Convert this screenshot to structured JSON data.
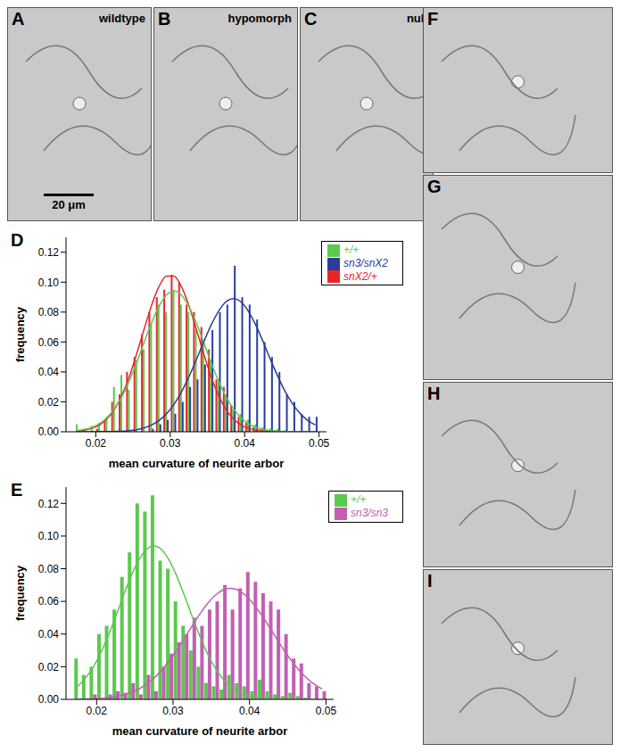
{
  "image_panels": [
    {
      "panel_label": "A",
      "text": "wildtype",
      "scale_bar": "20 μm"
    },
    {
      "panel_label": "B",
      "text": "hypomorph"
    },
    {
      "panel_label": "C",
      "text": "null"
    },
    {
      "panel_label": "F"
    },
    {
      "panel_label": "G"
    },
    {
      "panel_label": "H"
    },
    {
      "panel_label": "I"
    }
  ],
  "chart_data": [
    {
      "panel_label": "D",
      "type": "histogram",
      "x_label": "mean curvature of neurite arbor",
      "y_label": "frequency",
      "bins": [
        0.017,
        0.018,
        0.019,
        0.02,
        0.021,
        0.022,
        0.023,
        0.024,
        0.025,
        0.026,
        0.027,
        0.028,
        0.029,
        0.03,
        0.031,
        0.032,
        0.033,
        0.034,
        0.035,
        0.036,
        0.037,
        0.038,
        0.039,
        0.04,
        0.041,
        0.042,
        0.043,
        0.044,
        0.045,
        0.046,
        0.047,
        0.048,
        0.049,
        0.05
      ],
      "xlim": [
        0.016,
        0.051
      ],
      "xticks": [
        0.02,
        0.03,
        0.04,
        0.05
      ],
      "ylim": [
        0,
        0.13
      ],
      "yticks": [
        {
          "value": 0,
          "label": "0.00"
        },
        {
          "value": 0.02,
          "label": "0.02"
        },
        {
          "value": 0.04,
          "label": "0.04"
        },
        {
          "value": 0.06,
          "label": "0.06"
        },
        {
          "value": 0.08,
          "label": "0.08"
        },
        {
          "value": 0.1,
          "label": "0.10"
        },
        {
          "value": 0.12,
          "label": "0.12"
        }
      ],
      "legend": "upper right",
      "series": [
        {
          "name": "snX2/+",
          "color": "#e8262a",
          "values": [
            0,
            0,
            0,
            0.002,
            0.008,
            0.02,
            0.025,
            0.04,
            0.05,
            0.065,
            0.08,
            0.09,
            0.095,
            0.105,
            0.1,
            0.085,
            0.08,
            0.07,
            0.055,
            0.035,
            0.03,
            0.018,
            0.01,
            0.006,
            0.003,
            0.002,
            0.001,
            0,
            0,
            0,
            0,
            0,
            0
          ],
          "fit": [
            0.0005,
            0.0011,
            0.0023,
            0.0046,
            0.0086,
            0.0149,
            0.0244,
            0.0367,
            0.0522,
            0.0687,
            0.0846,
            0.0971,
            0.1041,
            0.1041,
            0.0971,
            0.0846,
            0.0687,
            0.0522,
            0.0367,
            0.0244,
            0.0149,
            0.0086,
            0.0046,
            0.0023,
            0.0011,
            0.0005,
            0.0002,
            0.0001,
            0,
            0,
            0,
            0,
            0
          ]
        },
        {
          "name": "+/+",
          "color": "#5cc84e",
          "values": [
            0.005,
            0.002,
            0.004,
            0.006,
            0.01,
            0.03,
            0.038,
            0.028,
            0.048,
            0.055,
            0.072,
            0.085,
            0.08,
            0.095,
            0.085,
            0.08,
            0.068,
            0.06,
            0.048,
            0.035,
            0.025,
            0.015,
            0.012,
            0.008,
            0.005,
            0.003,
            0.002,
            0.002,
            0.001,
            0,
            0,
            0,
            0
          ],
          "fit": [
            0.0008,
            0.0016,
            0.003,
            0.0055,
            0.0094,
            0.0154,
            0.0234,
            0.0339,
            0.0462,
            0.0598,
            0.0729,
            0.0839,
            0.0914,
            0.094,
            0.0914,
            0.0839,
            0.0729,
            0.0598,
            0.0462,
            0.0339,
            0.0234,
            0.0154,
            0.0094,
            0.0055,
            0.003,
            0.0016,
            0.0008,
            0.0004,
            0.0002,
            0.0001,
            0,
            0,
            0
          ]
        },
        {
          "name": "sn3/snX2",
          "color": "#2a3d9e",
          "values": [
            0,
            0,
            0,
            0,
            0,
            0,
            0,
            0,
            0,
            0,
            0.002,
            0.005,
            0.008,
            0.012,
            0.02,
            0.03,
            0.035,
            0.045,
            0.068,
            0.08,
            0.085,
            0.111,
            0.09,
            0.085,
            0.075,
            0.06,
            0.05,
            0.04,
            0.025,
            0.02,
            0.012,
            0.01,
            0.01
          ],
          "fit": [
            0,
            0,
            0,
            0.0001,
            0.0001,
            0.0002,
            0.0003,
            0.0007,
            0.0014,
            0.0025,
            0.0045,
            0.0075,
            0.012,
            0.0183,
            0.0265,
            0.0366,
            0.048,
            0.06,
            0.0713,
            0.0806,
            0.0869,
            0.089,
            0.0869,
            0.0806,
            0.0713,
            0.06,
            0.048,
            0.0366,
            0.0265,
            0.0183,
            0.012,
            0.0075,
            0.0045
          ]
        }
      ]
    },
    {
      "panel_label": "E",
      "type": "histogram",
      "x_label": "mean curvature of neurite arbor",
      "y_label": "frequency",
      "bins": [
        0.017,
        0.018,
        0.019,
        0.02,
        0.021,
        0.022,
        0.023,
        0.024,
        0.025,
        0.026,
        0.027,
        0.028,
        0.029,
        0.03,
        0.031,
        0.032,
        0.033,
        0.034,
        0.035,
        0.036,
        0.037,
        0.038,
        0.039,
        0.04,
        0.041,
        0.042,
        0.043,
        0.044,
        0.045,
        0.046,
        0.047,
        0.048,
        0.049,
        0.05
      ],
      "xlim": [
        0.016,
        0.051
      ],
      "xticks": [
        0.02,
        0.03,
        0.04,
        0.05
      ],
      "ylim": [
        0,
        0.13
      ],
      "yticks": [
        {
          "value": 0,
          "label": "0.00"
        },
        {
          "value": 0.02,
          "label": "0.02"
        },
        {
          "value": 0.04,
          "label": "0.04"
        },
        {
          "value": 0.06,
          "label": "0.06"
        },
        {
          "value": 0.08,
          "label": "0.08"
        },
        {
          "value": 0.1,
          "label": "0.10"
        },
        {
          "value": 0.12,
          "label": "0.12"
        }
      ],
      "legend": "upper right",
      "series": [
        {
          "name": "+/+",
          "color": "#5cc84e",
          "values": [
            0.025,
            0.015,
            0.02,
            0.04,
            0.045,
            0.055,
            0.075,
            0.09,
            0.12,
            0.115,
            0.125,
            0.085,
            0.08,
            0.06,
            0.045,
            0.03,
            0.02,
            0.01,
            0.008,
            0.006,
            0.015,
            0.01,
            0.008,
            0.005,
            0.012,
            0.005,
            0.003,
            0.002,
            0.004,
            0.002,
            0.001,
            0,
            0
          ],
          "fit": [
            0.0079,
            0.0127,
            0.0193,
            0.028,
            0.0387,
            0.0507,
            0.0634,
            0.0753,
            0.0851,
            0.0918,
            0.094,
            0.0918,
            0.0851,
            0.0753,
            0.0634,
            0.0507,
            0.0387,
            0.028,
            0.0193,
            0.0127,
            0.0079,
            0.0047,
            0.0026,
            0.0015,
            0.0007,
            0.0003,
            0.0002,
            0.0001,
            0,
            0,
            0,
            0,
            0
          ]
        },
        {
          "name": "sn3/sn3",
          "color": "#c25fb3",
          "values": [
            0,
            0,
            0.003,
            0,
            0.003,
            0.005,
            0.004,
            0.01,
            0.003,
            0.015,
            0.005,
            0.02,
            0.028,
            0.035,
            0.04,
            0.05,
            0.045,
            0.055,
            0.06,
            0.07,
            0.055,
            0.068,
            0.078,
            0.072,
            0.065,
            0.06,
            0.055,
            0.04,
            0.025,
            0.022,
            0.01,
            0.008,
            0.005
          ],
          "fit": [
            0.0001,
            0.0002,
            0.0003,
            0.0006,
            0.001,
            0.0016,
            0.0027,
            0.0042,
            0.0063,
            0.0092,
            0.013,
            0.0178,
            0.0236,
            0.0302,
            0.0375,
            0.045,
            0.0522,
            0.0586,
            0.0636,
            0.0669,
            0.068,
            0.0669,
            0.0636,
            0.0586,
            0.0522,
            0.045,
            0.0375,
            0.0302,
            0.0236,
            0.0178,
            0.013,
            0.0092,
            0.0063
          ]
        }
      ]
    }
  ]
}
